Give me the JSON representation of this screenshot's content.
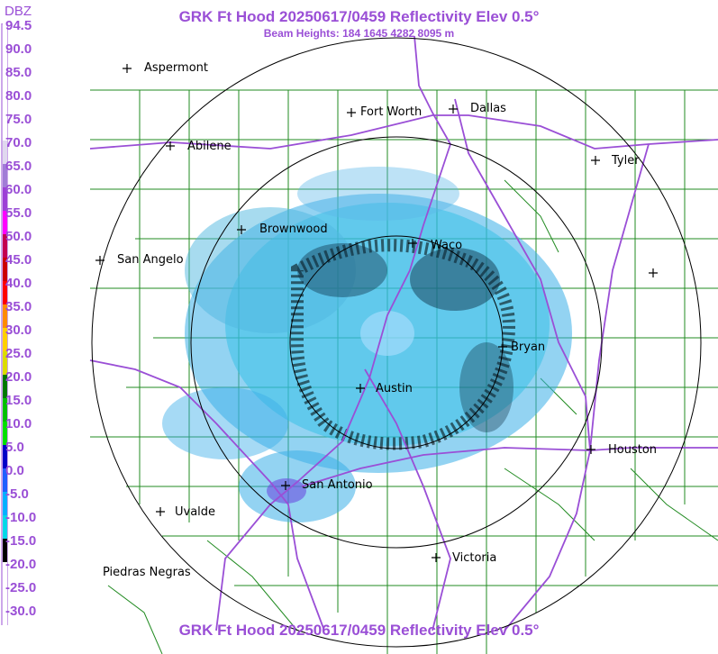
{
  "header": {
    "title": "GRK Ft Hood 20250617/0459 Reflectivity Elev 0.5°",
    "subtitle": "Beam Heights: 184 1645 4282 8095 m",
    "footer_title": "GRK Ft Hood 20250617/0459 Reflectivity Elev 0.5°"
  },
  "legend": {
    "unit": "DBZ",
    "ticks": [
      "94.5",
      "90.0",
      "85.0",
      "80.0",
      "75.0",
      "70.0",
      "65.0",
      "60.0",
      "55.0",
      "50.0",
      "45.0",
      "40.0",
      "35.0",
      "30.0",
      "25.0",
      "20.0",
      "15.0",
      "10.0",
      "5.0",
      "0.0",
      "-5.0",
      "-10.0",
      "-15.0",
      "-20.0",
      "-25.0",
      "-30.0"
    ],
    "colors": [
      "#ffffff",
      "#ffffff",
      "#ffffff",
      "#ffffff",
      "#ffffff",
      "#e0d8ef",
      "#a17cd6",
      "#9d3fd6",
      "#ff00ff",
      "#c40050",
      "#cc0000",
      "#ff0000",
      "#ff8c00",
      "#ffd000",
      "#dcdc00",
      "#007800",
      "#00c000",
      "#00e000",
      "#0000c8",
      "#1f5fff",
      "#00b0ff",
      "#00d8e8",
      "#000000",
      "#ffffff",
      "#ffffff",
      "#ffffff"
    ]
  },
  "map": {
    "cities": [
      {
        "name": "Aspermont"
      },
      {
        "name": "Fort Worth"
      },
      {
        "name": "Dallas"
      },
      {
        "name": "Abilene"
      },
      {
        "name": "Tyler"
      },
      {
        "name": "Brownwood"
      },
      {
        "name": "Waco"
      },
      {
        "name": "San Angelo"
      },
      {
        "name": "Bryan"
      },
      {
        "name": "Austin"
      },
      {
        "name": "Houston"
      },
      {
        "name": "San Antonio"
      },
      {
        "name": "Uvalde"
      },
      {
        "name": "Victoria"
      },
      {
        "name": "Piedras Negras"
      }
    ],
    "colors": {
      "county": "#228b22",
      "highway": "#9a4fd6",
      "range_ring": "#000000",
      "title": "#9a4fd6"
    }
  }
}
